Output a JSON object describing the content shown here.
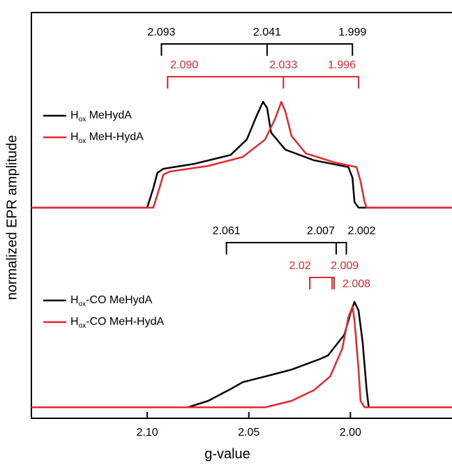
{
  "chart_data": {
    "type": "line",
    "xlabel": "g-value",
    "ylabel": "normalized EPR amplitude",
    "xlim": [
      2.157,
      1.95
    ],
    "ylim": [
      0,
      100
    ],
    "xticks": [
      {
        "value": 2.1,
        "label": "2.10"
      },
      {
        "value": 2.05,
        "label": "2.05"
      },
      {
        "value": 2.0,
        "label": "2.00"
      }
    ],
    "series": [
      {
        "name": "Hox MeHydA",
        "color": "#000000",
        "x": [
          2.157,
          2.1,
          2.097,
          2.095,
          2.092,
          2.077,
          2.059,
          2.051,
          2.046,
          2.043,
          2.041,
          2.039,
          2.032,
          2.018,
          2.001,
          1.999,
          1.998,
          1.996,
          1.95
        ],
        "y": [
          51.9,
          51.9,
          56.7,
          60.5,
          61.5,
          62.7,
          64.9,
          68.7,
          74.7,
          78.0,
          76.5,
          70.4,
          66.2,
          63.6,
          61.9,
          59.3,
          53.3,
          51.9,
          51.9
        ]
      },
      {
        "name": "Hox MeH-HydA",
        "color": "#e8262b",
        "x": [
          2.157,
          2.097,
          2.094,
          2.092,
          2.089,
          2.07,
          2.053,
          2.042,
          2.037,
          2.034,
          2.032,
          2.029,
          2.022,
          2.008,
          1.997,
          1.995,
          1.993,
          1.992,
          1.95
        ],
        "y": [
          51.9,
          51.9,
          56.7,
          60.1,
          60.8,
          62.2,
          64.4,
          68.7,
          73.9,
          78.0,
          75.6,
          69.6,
          65.3,
          63.1,
          61.9,
          58.4,
          53.3,
          51.9,
          51.9
        ]
      },
      {
        "name": "Hox-CO MeHydA",
        "color": "#000000",
        "x": [
          2.157,
          2.08,
          2.07,
          2.059,
          2.053,
          2.042,
          2.029,
          2.015,
          2.011,
          2.003,
          2.0,
          1.998,
          1.996,
          1.994,
          1.992,
          1.991,
          1.95
        ],
        "y": [
          2.7,
          2.7,
          4.3,
          7.2,
          8.9,
          10.3,
          12.0,
          14.6,
          15.5,
          20.6,
          25.8,
          28.7,
          26.6,
          18.9,
          6.9,
          2.7,
          2.7
        ]
      },
      {
        "name": "Hox-CO MeH-HydA",
        "color": "#e8262b",
        "x": [
          2.157,
          2.042,
          2.029,
          2.018,
          2.01,
          2.004,
          2.001,
          1.999,
          1.998,
          1.996,
          1.995,
          1.993,
          1.95
        ],
        "y": [
          2.7,
          2.7,
          4.3,
          6.9,
          10.3,
          17.2,
          24.9,
          27.5,
          24.1,
          12.0,
          4.3,
          2.7,
          2.7
        ]
      }
    ],
    "brackets": [
      {
        "color": "#000000",
        "values": [
          2.093,
          2.041,
          1.999
        ],
        "value_labels": [
          "2.093",
          "2.041",
          "1.999"
        ]
      },
      {
        "color": "#e8262b",
        "values": [
          2.09,
          2.033,
          1.996
        ],
        "value_labels": [
          "2.090",
          "2.033",
          "1.996"
        ]
      },
      {
        "color": "#000000",
        "values": [
          2.061,
          2.007,
          2.002
        ],
        "value_labels": [
          "2.061",
          "2.007",
          "2.002"
        ]
      },
      {
        "color": "#e8262b",
        "values": [
          2.02,
          2.009,
          2.008
        ],
        "value_labels": [
          "2.02",
          "2.009",
          "2.008"
        ]
      }
    ]
  }
}
